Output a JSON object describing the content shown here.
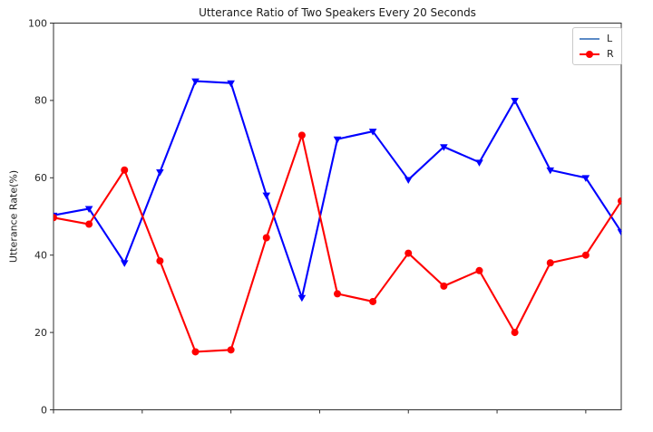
{
  "figure": {
    "title": "Utterance Ratio of Two Speakers Every 20 Seconds",
    "ylabel": "Utterance Rate(%)",
    "background_color": "#ffffff",
    "spine_color": "#2e2e2e",
    "tick_label_color": "#262626"
  },
  "legend": {
    "position": "upper-right",
    "entries": [
      {
        "label": "L",
        "swatch_color": "#5b8ac6",
        "marker": "none"
      },
      {
        "label": "R",
        "swatch_color": "#ff0000",
        "marker": "circle"
      }
    ]
  },
  "chart_data": {
    "type": "line",
    "title": "Utterance Ratio of Two Speakers Every 20 Seconds",
    "xlabel": "",
    "ylabel": "Utterance Rate(%)",
    "x_unit": "seconds, one point every 20 s",
    "x": [
      0,
      20,
      40,
      60,
      80,
      100,
      120,
      140,
      160,
      180,
      200,
      220,
      240,
      260,
      280,
      300,
      320
    ],
    "series": [
      {
        "name": "L",
        "color": "#0000ff",
        "marker": "triangle-down",
        "values": [
          50.3,
          52,
          38,
          61.5,
          85,
          84.5,
          55.5,
          29,
          70,
          72,
          59.5,
          68,
          64,
          80,
          62,
          60,
          46
        ]
      },
      {
        "name": "R",
        "color": "#ff0000",
        "marker": "circle",
        "values": [
          49.7,
          48,
          62,
          38.5,
          15,
          15.5,
          44.5,
          71,
          30,
          28,
          40.5,
          32,
          36,
          20,
          38,
          40,
          54
        ]
      }
    ],
    "xlim": [
      0,
      320
    ],
    "ylim": [
      0,
      100
    ],
    "yticks": [
      0,
      20,
      40,
      60,
      80,
      100
    ],
    "xticks": [
      0,
      50,
      100,
      150,
      200,
      250,
      300
    ],
    "xtick_labels": [],
    "grid": false,
    "legend_position": "upper right"
  }
}
